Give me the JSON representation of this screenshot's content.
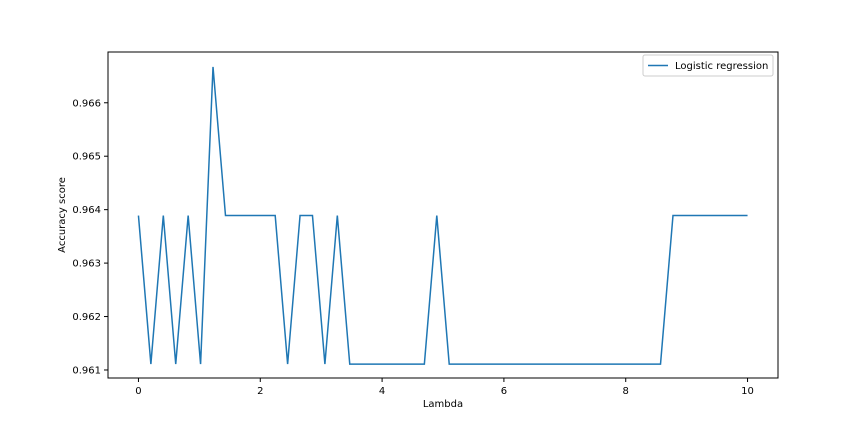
{
  "chart_data": {
    "type": "line",
    "title": "",
    "xlabel": "Lambda",
    "ylabel": "Accuracy score",
    "xlim": [
      -0.5,
      10.5
    ],
    "ylim": [
      0.96085,
      0.96695
    ],
    "xticks": [
      0,
      2,
      4,
      6,
      8,
      10
    ],
    "xtick_labels": [
      "0",
      "2",
      "4",
      "6",
      "8",
      "10"
    ],
    "yticks": [
      0.961,
      0.962,
      0.963,
      0.964,
      0.965,
      0.966
    ],
    "ytick_labels": [
      "0.961",
      "0.962",
      "0.963",
      "0.964",
      "0.965",
      "0.966"
    ],
    "grid": false,
    "legend_position": "top-right",
    "colors": {
      "series": "#1f77b4",
      "axes": "#000000",
      "background": "#ffffff"
    },
    "series": [
      {
        "name": "Logistic regression",
        "x": [
          0.0,
          0.204,
          0.408,
          0.612,
          0.816,
          1.02,
          1.224,
          1.429,
          1.633,
          1.837,
          2.041,
          2.245,
          2.449,
          2.653,
          2.857,
          3.061,
          3.265,
          3.469,
          3.673,
          3.878,
          4.082,
          4.286,
          4.49,
          4.694,
          4.898,
          5.102,
          5.306,
          5.51,
          5.714,
          5.918,
          6.122,
          6.327,
          6.531,
          6.735,
          6.939,
          7.143,
          7.347,
          7.551,
          7.755,
          7.959,
          8.163,
          8.367,
          8.571,
          8.776,
          8.98,
          9.184,
          9.388,
          9.592,
          9.796,
          10.0
        ],
        "y": [
          0.96389,
          0.96111,
          0.96389,
          0.96111,
          0.96389,
          0.96111,
          0.96667,
          0.96389,
          0.96389,
          0.96389,
          0.96389,
          0.96389,
          0.96111,
          0.96389,
          0.96389,
          0.96111,
          0.96389,
          0.96111,
          0.96111,
          0.96111,
          0.96111,
          0.96111,
          0.96111,
          0.96111,
          0.96389,
          0.96111,
          0.96111,
          0.96111,
          0.96111,
          0.96111,
          0.96111,
          0.96111,
          0.96111,
          0.96111,
          0.96111,
          0.96111,
          0.96111,
          0.96111,
          0.96111,
          0.96111,
          0.96111,
          0.96111,
          0.96111,
          0.96389,
          0.96389,
          0.96389,
          0.96389,
          0.96389,
          0.96389,
          0.96389
        ]
      }
    ]
  }
}
